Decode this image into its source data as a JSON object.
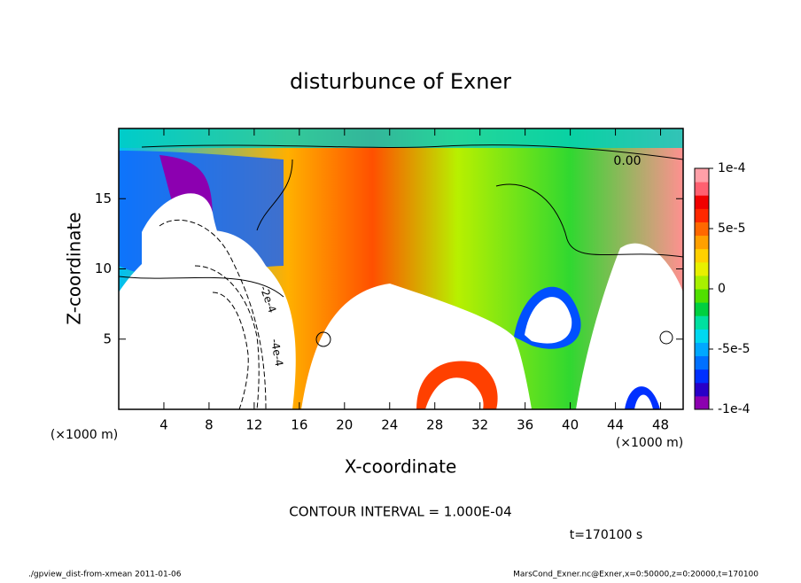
{
  "chart_data": {
    "type": "contour",
    "title": "disturbunce of Exner",
    "xlabel": "X-coordinate",
    "ylabel": "Z-coordinate",
    "x_unit": "(×1000 m)",
    "y_unit": "(×1000 m)",
    "xlim": [
      0,
      50
    ],
    "xticks": [
      4,
      8,
      12,
      16,
      20,
      24,
      28,
      32,
      36,
      40,
      44,
      48
    ],
    "ylim": [
      0,
      20
    ],
    "yticks": [
      5,
      10,
      15
    ],
    "colorbar": {
      "clim": [
        -0.0001,
        0.0001
      ],
      "ticks": [
        {
          "value": 0.0001,
          "label": "1e-4"
        },
        {
          "value": 5e-05,
          "label": "5e-5"
        },
        0,
        {
          "value": -5e-05,
          "label": "-5e-5"
        },
        {
          "value": -0.0001,
          "label": "-1e-4"
        }
      ],
      "colors": [
        "#8c00b0",
        "#2800c8",
        "#0030ff",
        "#0070ff",
        "#00a8ff",
        "#00d8f0",
        "#00e0a0",
        "#00d040",
        "#50e000",
        "#a8f000",
        "#e8f000",
        "#ffd000",
        "#ffa000",
        "#ff6800",
        "#ff2800",
        "#f00000",
        "#ff6070",
        "#ffa0a8"
      ]
    },
    "contour_labels": [
      "0.00",
      "-2e-4",
      "-4e-4"
    ],
    "contour_interval": "CONTOUR INTERVAL = 1.000E-04",
    "time_label": "t=170100 s",
    "footer_left": "./gpview_dist-from-xmean  2011-01-06",
    "footer_right": "MarsCond_Exner.nc@Exner,x=0:50000,z=0:20000,t=170100"
  }
}
